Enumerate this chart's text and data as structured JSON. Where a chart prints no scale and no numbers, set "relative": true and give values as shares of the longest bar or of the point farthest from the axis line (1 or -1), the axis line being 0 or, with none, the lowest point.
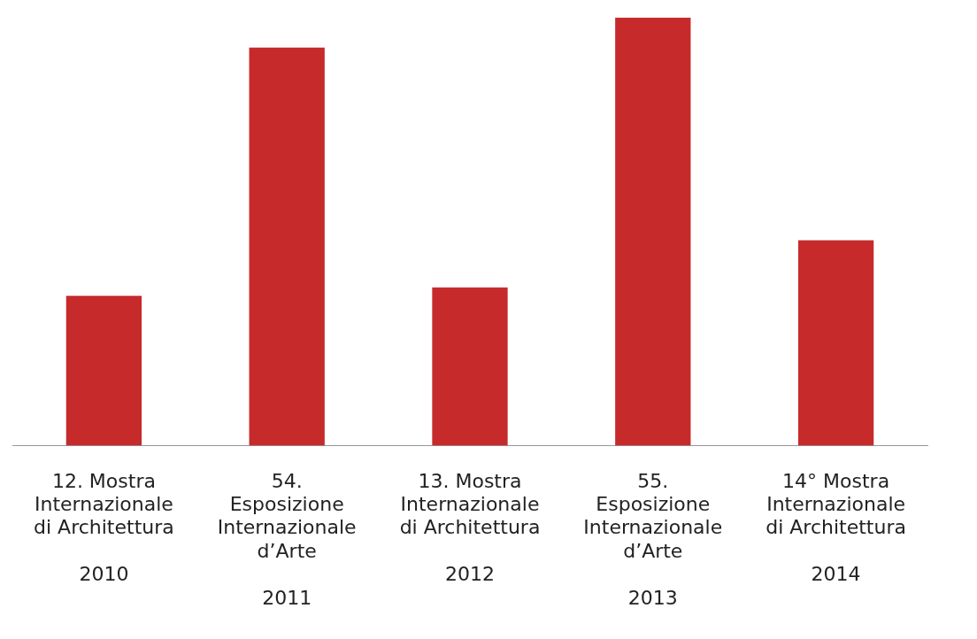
{
  "chart_data": {
    "type": "bar",
    "relative": true,
    "categories": [
      "12. Mostra\nInternazionale\ndi Architettura\n\n2010",
      "54.\nEsposizione\nInternazionale\nd’Arte\n\n2011",
      "13. Mostra\nInternazionale\ndi Architettura\n\n2012",
      "55.\nEsposizione\nInternazionale\nd’Arte\n\n2013",
      "14° Mostra\nInternazionale\ndi Architettura\n\n2014"
    ],
    "values": [
      0.35,
      0.93,
      0.37,
      1,
      0.48
    ],
    "color": "#c62a2b"
  }
}
